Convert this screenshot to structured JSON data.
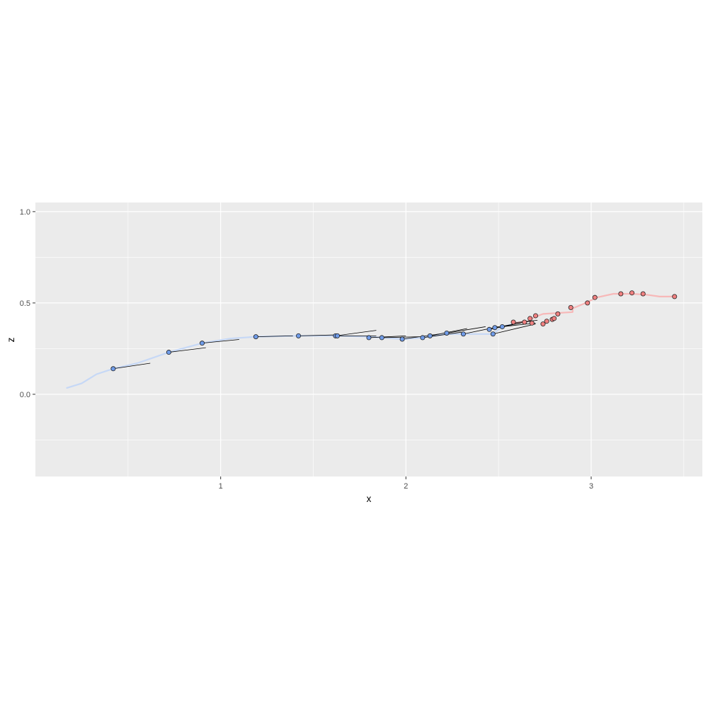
{
  "chart_data": {
    "type": "scatter",
    "xlabel": "x",
    "ylabel": "z",
    "xlim": [
      0.0,
      3.6
    ],
    "ylim": [
      -0.45,
      1.05
    ],
    "x_ticks": [
      1,
      2,
      3
    ],
    "x_tick_labels": [
      "1",
      "2",
      "3"
    ],
    "y_ticks": [
      0.0,
      0.5,
      1.0
    ],
    "y_tick_labels": [
      "0.0",
      "0.5",
      "1.0"
    ],
    "x_minor_ticks": [
      0.5,
      1.5,
      2.5,
      3.5
    ],
    "y_minor_ticks": [
      -0.25,
      0.25,
      0.75
    ],
    "grid": true,
    "legend": "none",
    "colors": {
      "panel": "#ebebeb",
      "grid": "#ffffff",
      "blue_point": "#6f9be8",
      "blue_path": "#c6d8f6",
      "red_point": "#f08080",
      "red_path": "#f7b8b8",
      "segment": "#000000",
      "point_outline": "#222222"
    },
    "paths": [
      {
        "color_key": "blue_path",
        "points": [
          [
            0.17,
            0.035
          ],
          [
            0.25,
            0.06
          ],
          [
            0.33,
            0.11
          ],
          [
            0.42,
            0.14
          ],
          [
            0.55,
            0.17
          ],
          [
            0.72,
            0.23
          ],
          [
            0.9,
            0.28
          ],
          [
            1.05,
            0.305
          ],
          [
            1.19,
            0.315
          ],
          [
            1.42,
            0.32
          ],
          [
            1.62,
            0.32
          ],
          [
            1.8,
            0.315
          ],
          [
            1.87,
            0.31
          ],
          [
            1.98,
            0.302
          ],
          [
            2.09,
            0.31
          ],
          [
            2.22,
            0.33
          ],
          [
            2.31,
            0.33
          ],
          [
            2.47,
            0.33
          ],
          [
            2.52,
            0.37
          ],
          [
            2.6,
            0.39
          ]
        ]
      },
      {
        "color_key": "red_path",
        "points": [
          [
            2.58,
            0.39
          ],
          [
            2.66,
            0.4
          ],
          [
            2.7,
            0.425
          ],
          [
            2.74,
            0.44
          ],
          [
            2.9,
            0.45
          ],
          [
            2.9,
            0.47
          ],
          [
            2.97,
            0.5
          ],
          [
            3.03,
            0.53
          ],
          [
            3.12,
            0.55
          ],
          [
            3.22,
            0.55
          ],
          [
            3.3,
            0.545
          ],
          [
            3.37,
            0.535
          ],
          [
            3.45,
            0.535
          ]
        ]
      }
    ],
    "segments": [
      [
        0.42,
        0.14,
        0.62,
        0.17
      ],
      [
        0.72,
        0.23,
        0.92,
        0.255
      ],
      [
        0.9,
        0.28,
        1.1,
        0.3
      ],
      [
        1.19,
        0.315,
        1.39,
        0.32
      ],
      [
        1.42,
        0.32,
        1.62,
        0.325
      ],
      [
        1.62,
        0.32,
        1.84,
        0.35
      ],
      [
        1.62,
        0.32,
        1.84,
        0.32
      ],
      [
        1.8,
        0.31,
        2.0,
        0.32
      ],
      [
        1.87,
        0.31,
        2.07,
        0.315
      ],
      [
        1.98,
        0.302,
        2.18,
        0.33
      ],
      [
        2.09,
        0.31,
        2.3,
        0.34
      ],
      [
        2.13,
        0.32,
        2.33,
        0.36
      ],
      [
        2.22,
        0.335,
        2.43,
        0.37
      ],
      [
        2.31,
        0.33,
        2.5,
        0.37
      ],
      [
        2.45,
        0.355,
        2.62,
        0.39
      ],
      [
        2.47,
        0.33,
        2.7,
        0.385
      ],
      [
        2.48,
        0.365,
        2.67,
        0.4
      ],
      [
        2.52,
        0.37,
        2.7,
        0.39
      ],
      [
        2.57,
        0.39,
        2.71,
        0.405
      ]
    ],
    "series": [
      {
        "color_key": "blue_point",
        "x": [
          0.42,
          0.72,
          0.9,
          1.19,
          1.42,
          1.62,
          1.63,
          1.8,
          1.87,
          1.98,
          2.09,
          2.13,
          2.22,
          2.31,
          2.45,
          2.47,
          2.48,
          2.52
        ],
        "y": [
          0.14,
          0.23,
          0.28,
          0.315,
          0.32,
          0.32,
          0.32,
          0.31,
          0.31,
          0.302,
          0.31,
          0.32,
          0.335,
          0.33,
          0.355,
          0.33,
          0.365,
          0.37
        ]
      },
      {
        "color_key": "red_point",
        "x": [
          2.58,
          2.64,
          2.67,
          2.68,
          2.7,
          2.74,
          2.76,
          2.79,
          2.8,
          2.82,
          2.89,
          2.98,
          3.02,
          3.16,
          3.22,
          3.28,
          3.45
        ],
        "y": [
          0.395,
          0.395,
          0.415,
          0.39,
          0.43,
          0.385,
          0.4,
          0.41,
          0.415,
          0.44,
          0.475,
          0.5,
          0.53,
          0.55,
          0.555,
          0.55,
          0.535
        ]
      }
    ]
  }
}
